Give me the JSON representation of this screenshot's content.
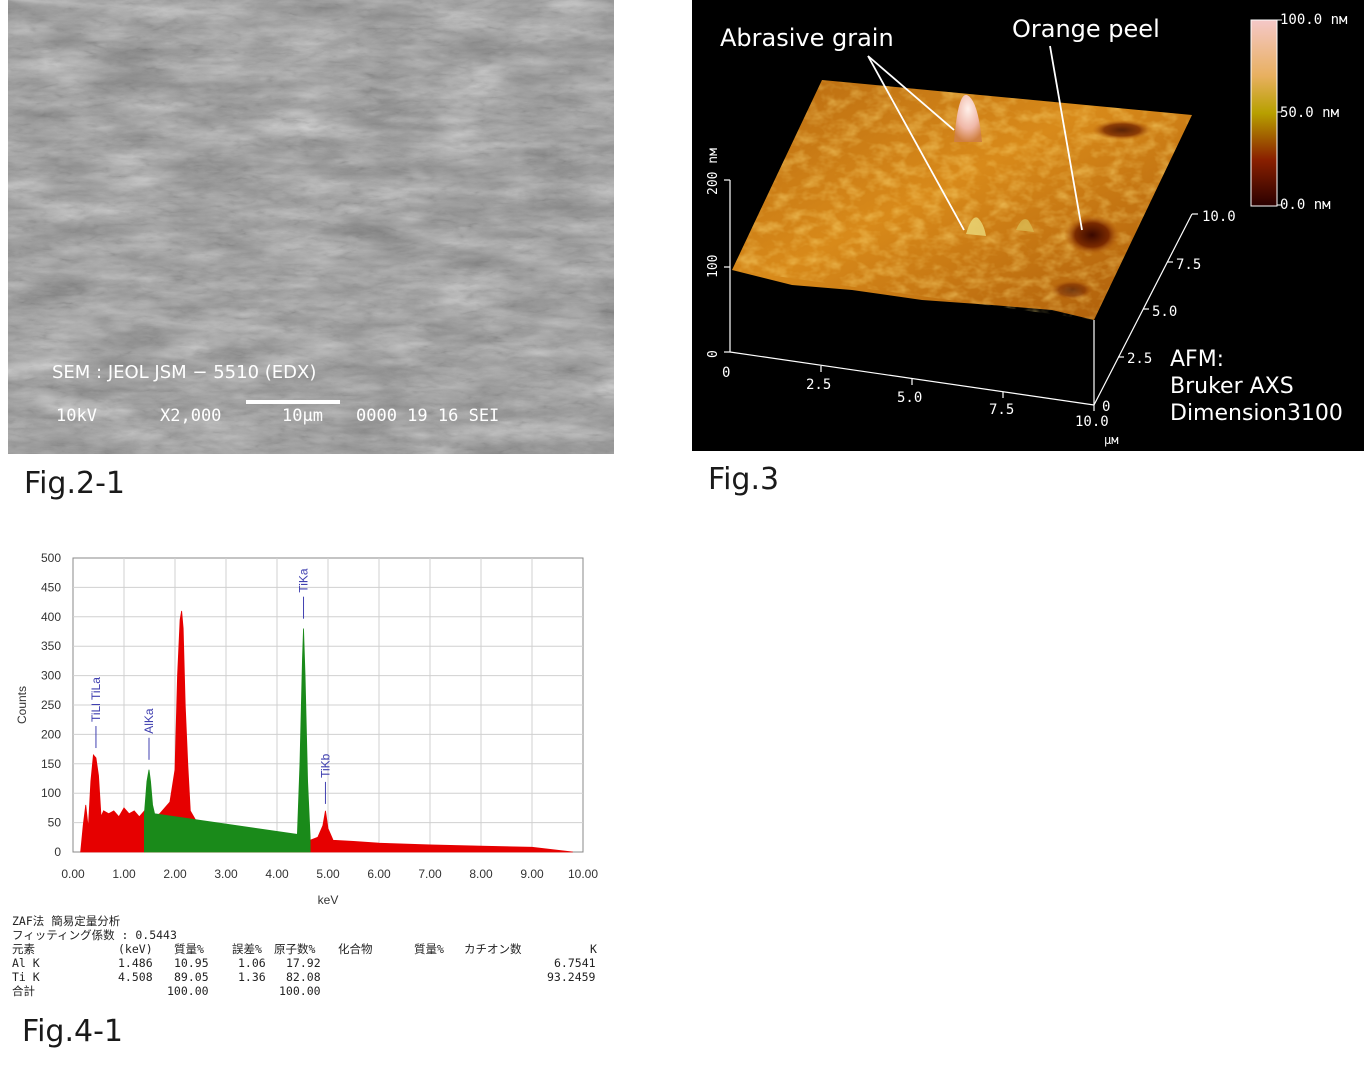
{
  "fig_sem": {
    "caption": "Fig.2-1",
    "instrument": "SEM : JEOL JSM − 5510 (EDX)",
    "kv": "10kV",
    "magnification": "X2,000",
    "scale_label": "10μm",
    "code": "0000 19 16 SEI"
  },
  "fig_afm": {
    "caption": "Fig.3",
    "label_grain": "Abrasive grain",
    "label_peel": "Orange peel",
    "colorbar": {
      "top": "100.0 nм",
      "mid": "50.0 nм",
      "bottom": "0.0 nм"
    },
    "z_ticks": [
      "200 nм",
      "100",
      "0"
    ],
    "x_ticks": [
      "0",
      "2.5",
      "5.0",
      "7.5",
      "10.0"
    ],
    "y_ticks": [
      "10.0",
      "7.5",
      "5.0",
      "2.5",
      "0"
    ],
    "unit": "μм",
    "instrument": [
      "AFM:",
      "Bruker AXS",
      "Dimension3100"
    ]
  },
  "fig_edx": {
    "caption": "Fig.4-1",
    "chart_data": {
      "type": "area",
      "xlabel": "keV",
      "ylabel": "Counts",
      "xlim": [
        0,
        10
      ],
      "ylim": [
        0,
        500
      ],
      "x_ticks": [
        "0.00",
        "1.00",
        "2.00",
        "3.00",
        "4.00",
        "5.00",
        "6.00",
        "7.00",
        "8.00",
        "9.00",
        "10.00"
      ],
      "y_ticks": [
        "0",
        "50",
        "100",
        "150",
        "200",
        "250",
        "300",
        "350",
        "400",
        "450",
        "500"
      ],
      "grid": true,
      "series": [
        {
          "color": "#e60000",
          "x": [
            0.15,
            0.2,
            0.25,
            0.3,
            0.35,
            0.4,
            0.45,
            0.5,
            0.55,
            0.6,
            0.7,
            0.8,
            0.9,
            1.0,
            1.1,
            1.2,
            1.3,
            1.4,
            1.6,
            1.7,
            1.8,
            1.9,
            2.0,
            2.05,
            2.1,
            2.13,
            2.16,
            2.2,
            2.25,
            2.3,
            2.4,
            2.6,
            2.8,
            3.0,
            3.5,
            4.0,
            4.4,
            4.65,
            4.8,
            4.9,
            4.95,
            5.0,
            5.1,
            5.5,
            6.0,
            7.0,
            8.0,
            9.0,
            9.8
          ],
          "y": [
            0,
            45,
            80,
            40,
            120,
            165,
            160,
            130,
            60,
            70,
            65,
            70,
            60,
            75,
            65,
            70,
            60,
            70,
            60,
            65,
            75,
            85,
            140,
            300,
            395,
            410,
            380,
            250,
            150,
            70,
            55,
            42,
            35,
            30,
            26,
            22,
            20,
            20,
            25,
            45,
            70,
            40,
            20,
            18,
            15,
            12,
            10,
            8,
            0
          ]
        },
        {
          "color": "#1a8a1a",
          "x": [
            1.4,
            1.45,
            1.49,
            1.52,
            1.56,
            1.6,
            4.4,
            4.45,
            4.5,
            4.52,
            4.55,
            4.6,
            4.65
          ],
          "y": [
            65,
            120,
            140,
            120,
            80,
            65,
            30,
            150,
            330,
            380,
            300,
            120,
            25
          ]
        }
      ],
      "peaks": [
        {
          "label": "TiLl TiLa",
          "x": 0.45,
          "y": 170
        },
        {
          "label": "AlKa",
          "x": 1.49,
          "y": 150
        },
        {
          "label": "TiKa",
          "x": 4.52,
          "y": 390
        },
        {
          "label": "TiKb",
          "x": 4.95,
          "y": 75
        }
      ]
    },
    "table": {
      "title": "ZAF法 簡易定量分析",
      "fitting": "フィッティング係数 : 0.5443",
      "headers": {
        "element": "元素",
        "kev": "(keV)",
        "mass": "質量%",
        "error": "誤差%",
        "atom": "原子数%",
        "compound": "化合物",
        "mass2": "質量%",
        "cation": "カチオン数",
        "k": "K"
      },
      "rows": [
        {
          "element": "Al K",
          "kev": "1.486",
          "mass": "10.95",
          "error": "1.06",
          "atom": "17.92",
          "k": "6.7541"
        },
        {
          "element": "Ti K",
          "kev": "4.508",
          "mass": "89.05",
          "error": "1.36",
          "atom": "82.08",
          "k": "93.2459"
        }
      ],
      "total": {
        "label": "合計",
        "mass": "100.00",
        "atom": "100.00"
      }
    }
  }
}
